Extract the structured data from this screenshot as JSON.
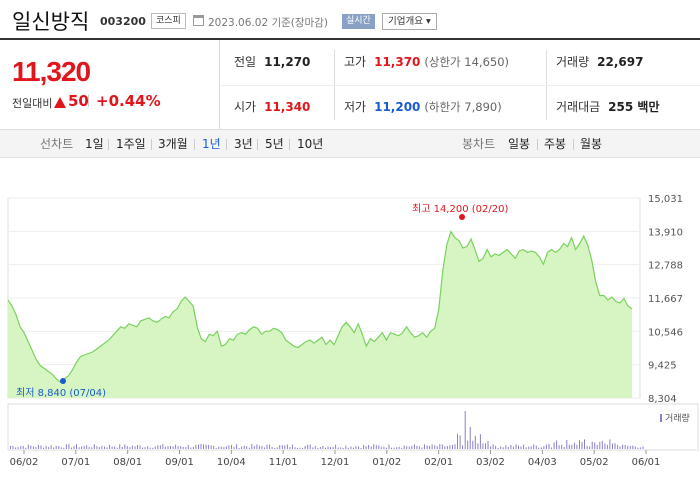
{
  "header": {
    "name": "일신방직",
    "code": "003200",
    "market": "코스피",
    "date": "2023.06.02  기준(장마감)",
    "realtime": "실시간",
    "overview": "기업개요 ▾"
  },
  "price": {
    "current": "11,320",
    "change_label": "전일대비",
    "change": "50",
    "change_pct": "+0.44%"
  },
  "stats": {
    "prev_label": "전일",
    "prev": "11,270",
    "open_label": "시가",
    "open": "11,340",
    "high_label": "고가",
    "high": "11,370",
    "upper_limit": "(상한가 14,650)",
    "low_label": "저가",
    "low": "11,200",
    "lower_limit": "(하한가 7,890)",
    "volume_label": "거래량",
    "volume": "22,697",
    "amount_label": "거래대금",
    "amount": "255 백만"
  },
  "tabs": {
    "line_chart": "선차트",
    "periods": [
      "1일",
      "1주일",
      "3개월",
      "1년",
      "3년",
      "5년",
      "10년"
    ],
    "active": "1년",
    "candle_chart": "봉차트",
    "candle_periods": [
      "일봉",
      "주봉",
      "월봉"
    ]
  },
  "chart_data": {
    "type": "area",
    "y_ticks": [
      "15,031",
      "13,910",
      "12,788",
      "11,667",
      "10,546",
      "9,425",
      "8,304"
    ],
    "ylim": [
      8304,
      15031
    ],
    "x_ticks": [
      "06/02",
      "07/01",
      "08/01",
      "09/01",
      "10/04",
      "11/01",
      "12/01",
      "01/02",
      "02/01",
      "03/02",
      "04/03",
      "05/02",
      "06/01"
    ],
    "high_label": "최고 14,200 (02/20)",
    "low_label": "최저 8,840 (07/04)",
    "volume_legend": "거래량",
    "values": [
      11600,
      11400,
      11100,
      10700,
      10500,
      10200,
      9900,
      9600,
      9400,
      9300,
      9200,
      9100,
      8950,
      8840,
      8950,
      9050,
      9250,
      9500,
      9700,
      9750,
      9800,
      9850,
      9950,
      10050,
      10150,
      10250,
      10400,
      10550,
      10700,
      10650,
      10800,
      10750,
      10700,
      10900,
      10950,
      11000,
      10900,
      10850,
      10950,
      11050,
      11000,
      11200,
      11300,
      11550,
      11700,
      11550,
      11400,
      10700,
      10300,
      10200,
      10450,
      10400,
      10550,
      10050,
      10100,
      10300,
      10250,
      10450,
      10500,
      10450,
      10600,
      10700,
      10650,
      10450,
      10550,
      10550,
      10650,
      10600,
      10500,
      10250,
      10150,
      10050,
      10000,
      10100,
      10200,
      10250,
      10150,
      10250,
      10350,
      10100,
      10250,
      10100,
      10400,
      10700,
      10850,
      10700,
      10500,
      10800,
      10450,
      10050,
      10300,
      10200,
      10350,
      10500,
      10250,
      10500,
      10450,
      10400,
      10500,
      10700,
      10500,
      10350,
      10400,
      10500,
      10350,
      10550,
      10650,
      11300,
      12600,
      13450,
      13900,
      13700,
      13600,
      13350,
      13400,
      13650,
      13300,
      12900,
      13000,
      13300,
      13050,
      13150,
      13100,
      13200,
      13300,
      13150,
      13000,
      13250,
      13300,
      13200,
      13250,
      13200,
      13050,
      12800,
      13200,
      13300,
      13200,
      13300,
      13500,
      13400,
      13700,
      13300,
      13500,
      13750,
      13450,
      12950,
      12200,
      11750,
      11750,
      11600,
      11700,
      11550,
      11500,
      11650,
      11400,
      11300
    ]
  }
}
